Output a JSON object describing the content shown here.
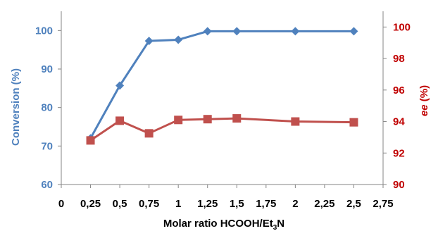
{
  "chart_data": {
    "type": "line",
    "x": [
      0.25,
      0.5,
      0.75,
      1,
      1.25,
      1.5,
      2,
      2.5
    ],
    "x_ticks": [
      "0",
      "0,25",
      "0,5",
      "0,75",
      "1",
      "1,25",
      "1,5",
      "1,75",
      "2",
      "2,25",
      "2,5",
      "2,75"
    ],
    "xlim": [
      0,
      2.75
    ],
    "xlabel_prefix": "Molar ratio HCOOH/Et",
    "xlabel_sub": "3",
    "xlabel_suffix": "N",
    "ylabel_left": "Conversion (%)",
    "ylim_left": [
      60,
      105
    ],
    "y_ticks_left": [
      "60",
      "70",
      "80",
      "90",
      "100"
    ],
    "ylabel_right_italic": "ee",
    "ylabel_right_rest": " (%)",
    "ylim_right": [
      90,
      101
    ],
    "y_ticks_right": [
      "90",
      "92",
      "94",
      "96",
      "98",
      "100"
    ],
    "grid": false,
    "series": [
      {
        "axis": "left",
        "marker": "diamond",
        "color": "#4f81bd",
        "values": [
          72,
          85.7,
          97.3,
          97.6,
          99.8,
          99.8,
          99.8,
          99.8
        ]
      },
      {
        "axis": "right",
        "marker": "square",
        "color": "#c0504d",
        "values": [
          92.8,
          94.05,
          93.25,
          94.1,
          94.15,
          94.2,
          94.0,
          93.95
        ]
      }
    ]
  }
}
